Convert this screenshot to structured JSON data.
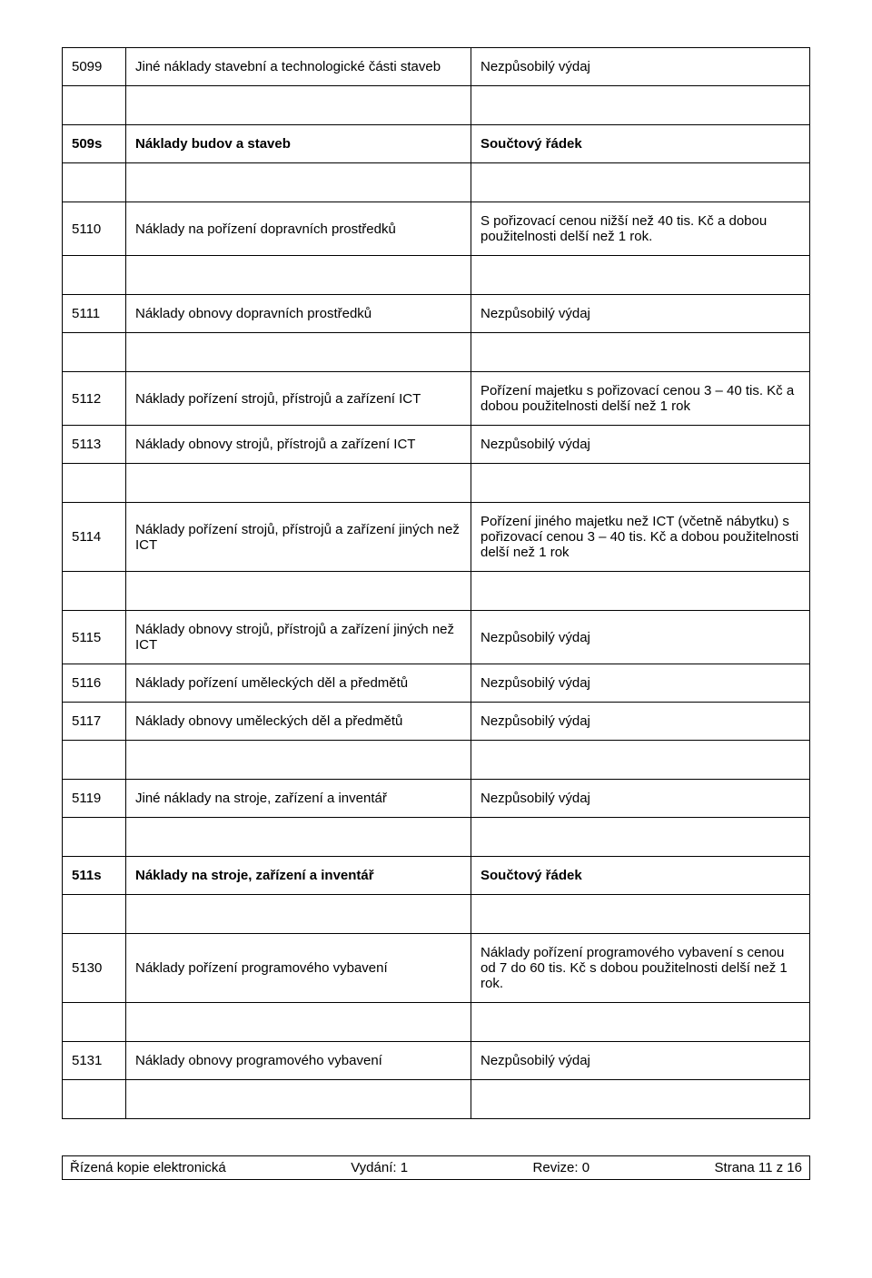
{
  "rows": [
    {
      "code": "5099",
      "desc": "Jiné náklady stavební a technologické části staveb",
      "note": "Nezpůsobilý výdaj",
      "bold": false,
      "spacerAfter": true
    },
    {
      "code": "509s",
      "desc": "Náklady budov a staveb",
      "note": "Součtový řádek",
      "bold": true,
      "spacerAfter": true
    },
    {
      "code": "5110",
      "desc": "Náklady na pořízení dopravních prostředků",
      "note": "S pořizovací cenou nižší než 40 tis. Kč a dobou použitelnosti delší než 1 rok.",
      "bold": false,
      "spacerAfter": true
    },
    {
      "code": "5111",
      "desc": "Náklady obnovy dopravních prostředků",
      "note": "Nezpůsobilý výdaj",
      "bold": false,
      "spacerAfter": true
    },
    {
      "code": "5112",
      "desc": "Náklady pořízení strojů, přístrojů a zařízení ICT",
      "note": "Pořízení majetku s pořizovací cenou 3 – 40 tis. Kč a dobou použitelnosti delší než 1 rok",
      "bold": false,
      "spacerAfter": false
    },
    {
      "code": "5113",
      "desc": "Náklady obnovy strojů, přístrojů a zařízení ICT",
      "note": "Nezpůsobilý výdaj",
      "bold": false,
      "spacerAfter": true
    },
    {
      "code": "5114",
      "desc": "Náklady pořízení strojů, přístrojů a zařízení jiných než ICT",
      "note": "Pořízení jiného majetku než ICT (včetně nábytku) s pořizovací cenou 3 – 40 tis. Kč a dobou použitelnosti delší než 1 rok",
      "bold": false,
      "spacerAfter": true
    },
    {
      "code": "5115",
      "desc": "Náklady obnovy strojů, přístrojů a zařízení jiných než ICT",
      "note": "Nezpůsobilý výdaj",
      "bold": false,
      "spacerAfter": false
    },
    {
      "code": "5116",
      "desc": "Náklady pořízení uměleckých děl a předmětů",
      "note": "Nezpůsobilý výdaj",
      "bold": false,
      "spacerAfter": false
    },
    {
      "code": "5117",
      "desc": "Náklady obnovy uměleckých děl a předmětů",
      "note": "Nezpůsobilý výdaj",
      "bold": false,
      "spacerAfter": true
    },
    {
      "code": "5119",
      "desc": "Jiné náklady na stroje, zařízení a inventář",
      "note": "Nezpůsobilý výdaj",
      "bold": false,
      "spacerAfter": true
    },
    {
      "code": "511s",
      "desc": "Náklady na stroje, zařízení a inventář",
      "note": "Součtový řádek",
      "bold": true,
      "spacerAfter": true
    },
    {
      "code": "5130",
      "desc": "Náklady pořízení programového vybavení",
      "note": "Náklady pořízení programového vybavení s cenou od 7 do 60 tis. Kč s dobou použitelnosti delší než 1 rok.",
      "bold": false,
      "spacerAfter": true
    },
    {
      "code": "5131",
      "desc": "Náklady obnovy programového vybavení",
      "note": "Nezpůsobilý výdaj",
      "bold": false,
      "spacerAfter": true
    }
  ],
  "footer": {
    "left": "Řízená kopie elektronická",
    "mid1": "Vydání: 1",
    "mid2": "Revize: 0",
    "right": "Strana 11 z 16"
  }
}
